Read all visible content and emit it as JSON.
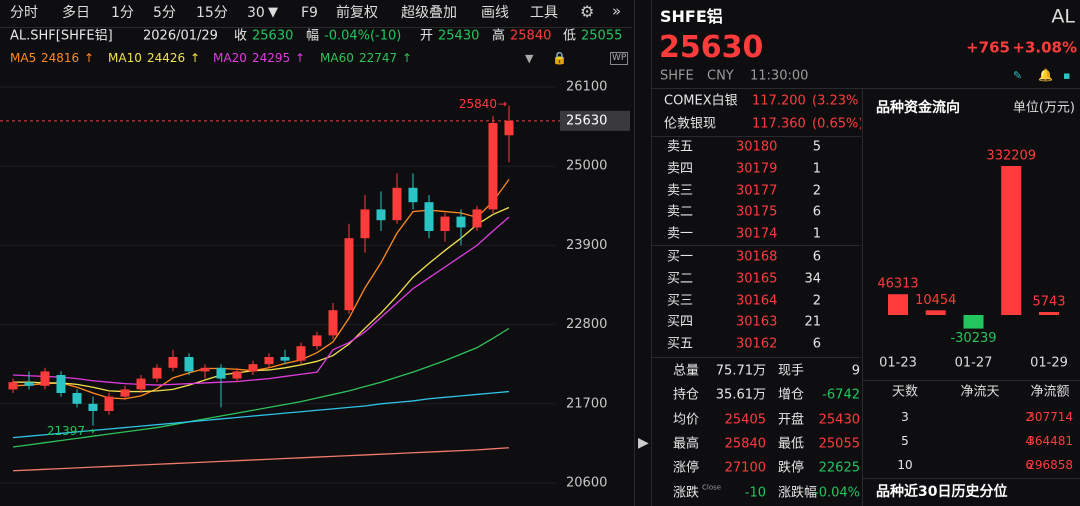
{
  "toolbar": {
    "tabs": [
      "分时",
      "多日",
      "1分",
      "5分",
      "15分",
      "30",
      "F9",
      "前复权",
      "超级叠加",
      "画线",
      "工具"
    ]
  },
  "quote_line": {
    "symbol": "AL.SHF[SHFE铝]",
    "date": "2026/01/29",
    "close_label": "收",
    "close": 25630,
    "change_label": "幅",
    "change": "-0.04%(-10)",
    "open_label": "开",
    "open": 25430,
    "high_label": "高",
    "high": 25840,
    "low_label": "低",
    "low": 25055
  },
  "chart_data": {
    "type": "candlestick",
    "open": [
      21900,
      22000,
      21950,
      22100,
      21850,
      21700,
      21600,
      21800,
      21900,
      22050,
      22200,
      22350,
      22150,
      22200,
      22050,
      22150,
      22250,
      22350,
      22300,
      22500,
      22650,
      23000,
      24000,
      24400,
      24250,
      24700,
      24500,
      24100,
      24300,
      24150,
      24400,
      25430
    ],
    "high": [
      22050,
      22150,
      22200,
      22150,
      21900,
      21800,
      21850,
      21950,
      22100,
      22250,
      22450,
      22400,
      22250,
      22250,
      22200,
      22300,
      22400,
      22450,
      22550,
      22700,
      23100,
      24200,
      24600,
      24650,
      24900,
      24900,
      24600,
      24350,
      24400,
      24450,
      25700,
      25840
    ],
    "low": [
      21850,
      21900,
      21900,
      21800,
      21650,
      21397,
      21550,
      21750,
      21850,
      22000,
      22150,
      22100,
      22050,
      21650,
      22000,
      22100,
      22200,
      22250,
      22250,
      22450,
      22600,
      22950,
      23800,
      24100,
      24200,
      24400,
      24000,
      23950,
      23900,
      24100,
      24350,
      25055
    ],
    "close": [
      22000,
      21950,
      22150,
      21850,
      21700,
      21600,
      21800,
      21900,
      22050,
      22200,
      22350,
      22150,
      22200,
      22050,
      22150,
      22250,
      22350,
      22300,
      22500,
      22650,
      23000,
      24000,
      24400,
      24250,
      24700,
      24500,
      24100,
      24300,
      24150,
      24400,
      25600,
      25630
    ],
    "series": [
      {
        "name": "MA5",
        "color": "#ff8a1f",
        "values": [
          21950,
          21960,
          21980,
          21990,
          21930,
          21850,
          21780,
          21770,
          21810,
          21910,
          22060,
          22130,
          22190,
          22190,
          22180,
          22160,
          22200,
          22260,
          22310,
          22410,
          22560,
          22890,
          23310,
          23660,
          24070,
          24370,
          24390,
          24370,
          24350,
          24290,
          24510,
          24816
        ]
      },
      {
        "name": "MA10",
        "color": "#f2e14c",
        "values": [
          22000,
          22000,
          21990,
          21990,
          21970,
          21930,
          21880,
          21870,
          21870,
          21880,
          21900,
          21960,
          22030,
          22100,
          22130,
          22160,
          22170,
          22200,
          22240,
          22290,
          22370,
          22530,
          22750,
          22960,
          23200,
          23460,
          23650,
          23830,
          24000,
          24190,
          24330,
          24426
        ]
      },
      {
        "name": "MA20",
        "color": "#e03ce0",
        "values": [
          22100,
          22090,
          22080,
          22070,
          22050,
          22020,
          22000,
          21980,
          21970,
          21960,
          21970,
          21980,
          21990,
          22000,
          22010,
          22030,
          22050,
          22080,
          22110,
          22140,
          22450,
          22550,
          22700,
          22900,
          23100,
          23300,
          23450,
          23600,
          23750,
          23900,
          24100,
          24295
        ]
      },
      {
        "name": "MA60",
        "color": "#2ec25a",
        "values": [
          21100,
          21130,
          21160,
          21190,
          21220,
          21250,
          21280,
          21310,
          21340,
          21370,
          21410,
          21450,
          21490,
          21530,
          21570,
          21610,
          21650,
          21690,
          21730,
          21780,
          21830,
          21880,
          21940,
          22000,
          22070,
          22140,
          22220,
          22300,
          22390,
          22480,
          22610,
          22747
        ]
      },
      {
        "color": "#2fc3e8",
        "values": [
          21230,
          21250,
          21270,
          21290,
          21310,
          21330,
          21350,
          21370,
          21390,
          21410,
          21430,
          21450,
          21470,
          21490,
          21510,
          21530,
          21550,
          21570,
          21590,
          21610,
          21630,
          21650,
          21670,
          21700,
          21720,
          21740,
          21770,
          21790,
          21810,
          21830,
          21850,
          21870
        ]
      },
      {
        "color": "#f07a6a",
        "values": [
          20770,
          20780,
          20790,
          20800,
          20810,
          20820,
          20830,
          20840,
          20850,
          20860,
          20870,
          20880,
          20890,
          20900,
          20910,
          20920,
          20930,
          20940,
          20950,
          20960,
          20970,
          20980,
          20990,
          21000,
          21010,
          21020,
          21030,
          21040,
          21050,
          21060,
          21075,
          21090
        ]
      }
    ],
    "ylim": [
      20600,
      26100
    ],
    "yticks": [
      20600,
      21700,
      22800,
      23900,
      25000,
      26100
    ],
    "up_color": "#ff3b3b",
    "down_color": "#2bc4c4"
  },
  "quote": {
    "name": "SHFE铝",
    "code": "AL",
    "price": 25630,
    "change": "+765",
    "change_pct": "+3.08%",
    "exchange": "SHFE",
    "currency": "CNY",
    "time": "11:30:00"
  },
  "related": [
    {
      "name": "COMEX白银",
      "price": "117.200",
      "pct": "(3.23%"
    },
    {
      "name": "伦敦银现",
      "price": "117.360",
      "pct": "(0.65%)"
    }
  ],
  "order_book": {
    "asks": [
      [
        "卖五",
        30180,
        5
      ],
      [
        "卖四",
        30179,
        1
      ],
      [
        "卖三",
        30177,
        2
      ],
      [
        "卖二",
        30175,
        6
      ],
      [
        "卖一",
        30174,
        1
      ]
    ],
    "bids": [
      [
        "买一",
        30168,
        6
      ],
      [
        "买二",
        30165,
        34
      ],
      [
        "买三",
        30164,
        2
      ],
      [
        "买四",
        30163,
        21
      ],
      [
        "买五",
        30162,
        6
      ]
    ]
  },
  "stats": {
    "close_tag": "Close",
    "rows": [
      [
        "总量",
        "75.71万",
        "现手",
        9
      ],
      [
        "持仓",
        "35.61万",
        "增仓",
        -6742
      ],
      [
        "均价",
        25405,
        "开盘",
        25430
      ],
      [
        "最高",
        25840,
        "最低",
        25055
      ],
      [
        "涨停",
        27100,
        "跌停",
        22625
      ],
      [
        "涨跌",
        -10,
        "涨跌幅",
        "-0.04%"
      ]
    ]
  },
  "fund_flow": {
    "title": "品种资金流向",
    "unit": "单位(万元)",
    "categories": [
      "01-23",
      null,
      "01-27",
      null,
      "01-29"
    ],
    "values": [
      46313,
      10454,
      -30239,
      332209,
      5743
    ],
    "table": {
      "headers": [
        "天数",
        "净流天",
        "净流额"
      ],
      "rows": [
        [
          3,
          2,
          307714
        ],
        [
          5,
          4,
          364481
        ],
        [
          10,
          6,
          296858
        ]
      ]
    }
  },
  "footer": "品种近30日历史分位"
}
